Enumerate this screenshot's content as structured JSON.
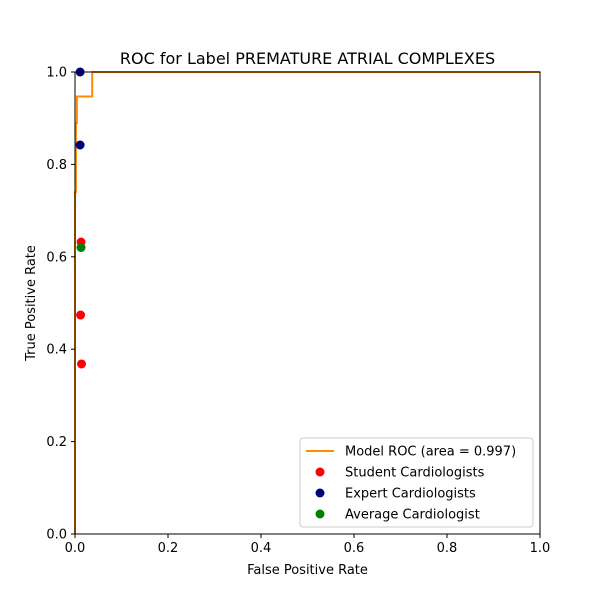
{
  "chart_data": {
    "type": "line",
    "title": "ROC for Label PREMATURE ATRIAL COMPLEXES",
    "xlabel": "False Positive Rate",
    "ylabel": "True Positive Rate",
    "xlim": [
      0.0,
      1.0
    ],
    "ylim": [
      0.0,
      1.0
    ],
    "xticks": [
      "0.0",
      "0.2",
      "0.4",
      "0.6",
      "0.8",
      "1.0"
    ],
    "yticks": [
      "0.0",
      "0.2",
      "0.4",
      "0.6",
      "0.8",
      "1.0"
    ],
    "grid": false,
    "legend_position": "lower-right",
    "series": [
      {
        "name": "Model ROC (area = 0.997)",
        "kind": "line",
        "color": "#ff8c00",
        "x": [
          0.0,
          0.0,
          0.002,
          0.002,
          0.004,
          0.004,
          0.037,
          0.037,
          1.0
        ],
        "y": [
          0.0,
          0.74,
          0.74,
          0.89,
          0.89,
          0.947,
          0.947,
          1.0,
          1.0
        ]
      },
      {
        "name": "Student Cardiologists",
        "kind": "scatter",
        "color": "#ff0000",
        "x": [
          0.013,
          0.012,
          0.014
        ],
        "y": [
          0.632,
          0.474,
          0.368
        ]
      },
      {
        "name": "Expert Cardiologists",
        "kind": "scatter",
        "color": "#00007f",
        "x": [
          0.011,
          0.011
        ],
        "y": [
          1.0,
          0.842
        ]
      },
      {
        "name": "Average Cardiologist",
        "kind": "scatter",
        "color": "#008000",
        "x": [
          0.013
        ],
        "y": [
          0.62
        ]
      }
    ]
  }
}
